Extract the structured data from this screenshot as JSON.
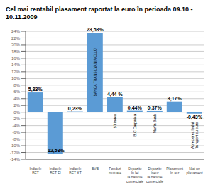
{
  "chart_data": {
    "type": "bar",
    "title": "Cel mai rentabil plasament raportat la euro în perioada 09.10 - 10.11.2009",
    "categories": [
      "Indicele\nBET",
      "Indicele\nBET FI",
      "Indicele\nBET XT",
      "BVB",
      "Fonduri\nmutuate",
      "Depozite\nîn lei\nla băncile\ncomerciale",
      "Depozite\nîneur\nla băncile\ncomerciale",
      "Plasament\nîn aur",
      "Nici un\nplasament"
    ],
    "values": [
      5.83,
      -12.53,
      0.23,
      23.53,
      4.44,
      0.44,
      0.37,
      3.17,
      -0.43
    ],
    "value_labels": [
      "5,83%",
      "-12,53%",
      "0,23%",
      "23,53%",
      "4,44 %",
      "0,44%",
      "0,37%",
      "3,17%",
      "-0,43%"
    ],
    "data_labels": true,
    "color": "#5b9bd5",
    "ylim": [
      -14,
      24
    ],
    "yticks": [
      {
        "value": -14,
        "label": "-14%"
      },
      {
        "value": -12,
        "label": "-12%"
      },
      {
        "value": -10,
        "label": "-10%"
      },
      {
        "value": -8,
        "label": "-8%"
      },
      {
        "value": -6,
        "label": "-6%"
      },
      {
        "value": -4,
        "label": "-4%"
      },
      {
        "value": -2,
        "label": "-2%"
      },
      {
        "value": 0,
        "label": "0%"
      },
      {
        "value": 2,
        "label": "2%"
      },
      {
        "value": 4,
        "label": "4%"
      },
      {
        "value": 6,
        "label": "6%"
      },
      {
        "value": 8,
        "label": "8%"
      },
      {
        "value": 10,
        "label": "10%"
      },
      {
        "value": 12,
        "label": "12%"
      },
      {
        "value": 14,
        "label": "14%"
      },
      {
        "value": 16,
        "label": "16%"
      },
      {
        "value": 18,
        "label": "18%"
      },
      {
        "value": 20,
        "label": "20%"
      },
      {
        "value": 22,
        "label": "22%"
      },
      {
        "value": 24,
        "label": "24%"
      }
    ],
    "grid": true,
    "annotations": [
      {
        "category": "BVB",
        "text": "BANCA TRANSILVANIA CLUJ"
      },
      {
        "category": "Fonduri\nmutuate",
        "text": "BT Index"
      },
      {
        "category": "Depozite\nîn lei\nla băncile\ncomerciale",
        "text": "B.C Carpatica"
      },
      {
        "category": "Depozite\nîneur\nla băncile\ncomerciale",
        "text": "Marfin Bank"
      },
      {
        "category": "Nici un\nplasament",
        "text": "Aprecierea leului\nîn raport cu euro"
      }
    ]
  }
}
